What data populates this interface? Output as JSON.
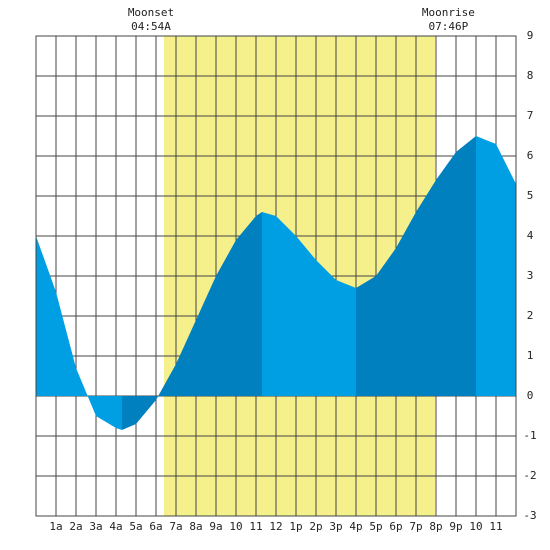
{
  "chart_data": {
    "type": "area",
    "x": [
      0,
      1,
      2,
      3,
      4,
      4.3,
      5,
      6,
      7,
      8,
      9,
      10,
      11,
      11.3,
      12,
      13,
      14,
      15,
      16,
      17,
      18,
      19,
      20,
      21,
      22,
      23,
      24
    ],
    "values": [
      4.0,
      2.6,
      0.7,
      -0.5,
      -0.8,
      -0.85,
      -0.7,
      -0.1,
      0.8,
      1.9,
      3.0,
      3.9,
      4.5,
      4.6,
      4.5,
      4.0,
      3.4,
      2.9,
      2.7,
      3.0,
      3.7,
      4.6,
      5.4,
      6.1,
      6.5,
      6.3,
      5.3
    ],
    "colors": [
      "#009ee3",
      "#0080bf"
    ],
    "daylight": [
      6.4,
      19.95
    ],
    "daylight_color": "#f5f08c",
    "moon_events": [
      {
        "label": "Moonset",
        "time": "04:54A",
        "hour": 4.9
      },
      {
        "label": "Moonrise",
        "time": "07:46P",
        "hour": 19.77
      }
    ],
    "xlim": [
      0,
      24
    ],
    "xticks": [
      {
        "value": 1,
        "label": "1a"
      },
      {
        "value": 2,
        "label": "2a"
      },
      {
        "value": 3,
        "label": "3a"
      },
      {
        "value": 4,
        "label": "4a"
      },
      {
        "value": 5,
        "label": "5a"
      },
      {
        "value": 6,
        "label": "6a"
      },
      {
        "value": 7,
        "label": "7a"
      },
      {
        "value": 8,
        "label": "8a"
      },
      {
        "value": 9,
        "label": "9a"
      },
      10,
      11,
      12,
      {
        "value": 13,
        "label": "1p"
      },
      {
        "value": 14,
        "label": "2p"
      },
      {
        "value": 15,
        "label": "3p"
      },
      {
        "value": 16,
        "label": "4p"
      },
      {
        "value": 17,
        "label": "5p"
      },
      {
        "value": 18,
        "label": "6p"
      },
      {
        "value": 19,
        "label": "7p"
      },
      {
        "value": 20,
        "label": "8p"
      },
      {
        "value": 21,
        "label": "9p"
      },
      {
        "value": 22,
        "label": "10"
      },
      {
        "value": 23,
        "label": "11"
      }
    ],
    "ylim": [
      -3,
      9
    ],
    "yticks": [
      -3,
      -2,
      -1,
      0,
      1,
      2,
      3,
      4,
      5,
      6,
      7,
      8,
      9
    ],
    "grid": true
  }
}
